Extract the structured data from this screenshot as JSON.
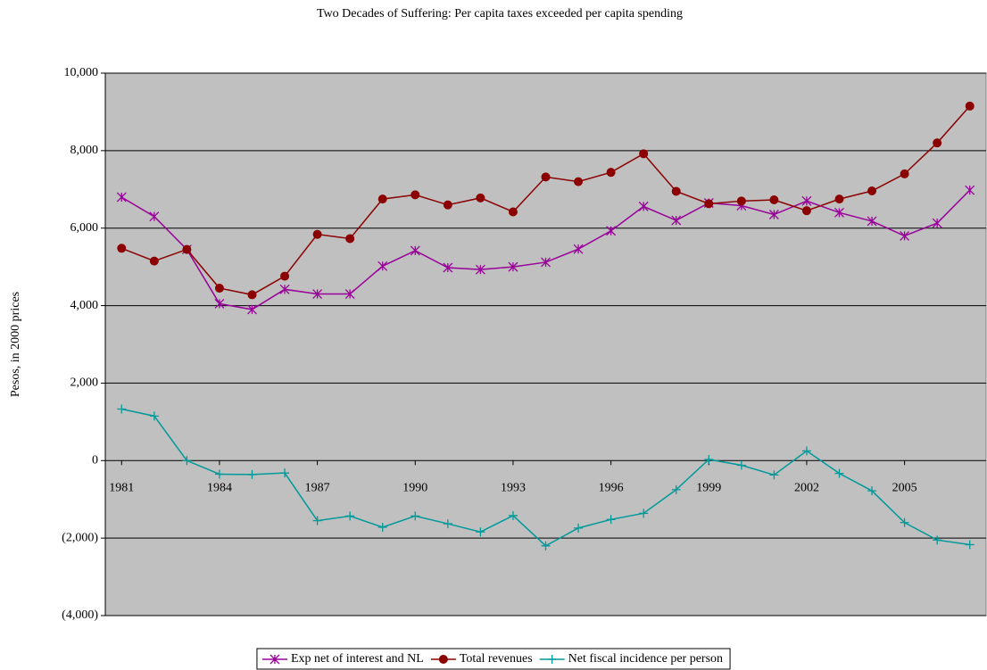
{
  "chart_data": {
    "type": "line",
    "title": "Two Decades of Suffering: Per capita taxes exceeded per capita  spending",
    "y_label": "Pesos, in 2000 prices",
    "x": [
      1981,
      1982,
      1983,
      1984,
      1985,
      1986,
      1987,
      1988,
      1989,
      1990,
      1991,
      1992,
      1993,
      1994,
      1995,
      1996,
      1997,
      1998,
      1999,
      2000,
      2001,
      2002,
      2003,
      2004,
      2005,
      2006,
      2007
    ],
    "xlim": [
      1980.5,
      2007.5
    ],
    "xticks": [
      1981,
      1984,
      1987,
      1990,
      1993,
      1996,
      1999,
      2002,
      2005
    ],
    "ylim": [
      -4000,
      10000
    ],
    "yticks": [
      {
        "value": -4000,
        "label": "(4,000)"
      },
      {
        "value": -2000,
        "label": "(2,000)"
      },
      0,
      {
        "value": 2000,
        "label": "2,000"
      },
      {
        "value": 4000,
        "label": "4,000"
      },
      {
        "value": 6000,
        "label": "6,000"
      },
      {
        "value": 8000,
        "label": "8,000"
      },
      {
        "value": 10000,
        "label": "10,000"
      }
    ],
    "grid": true,
    "legend": "bottom",
    "series": [
      {
        "name": "Exp net of interest and NL",
        "color": "#990099",
        "marker": "star",
        "values": [
          6800,
          6300,
          5450,
          4050,
          3900,
          4420,
          4300,
          4300,
          5020,
          5420,
          4980,
          4930,
          5000,
          5120,
          5460,
          5930,
          6560,
          6200,
          6650,
          6580,
          6350,
          6700,
          6400,
          6180,
          5800,
          6130,
          6980
        ]
      },
      {
        "name": "Total revenues",
        "color": "#8b0000",
        "marker": "circle",
        "values": [
          5480,
          5150,
          5450,
          4450,
          4280,
          4760,
          5840,
          5730,
          6750,
          6860,
          6600,
          6780,
          6420,
          7320,
          7200,
          7440,
          7920,
          6950,
          6630,
          6700,
          6730,
          6450,
          6750,
          6960,
          7400,
          8200,
          9150
        ]
      },
      {
        "name": "Net fiscal incidence per person",
        "color": "#009999",
        "marker": "plus",
        "values": [
          1330,
          1150,
          0,
          -350,
          -360,
          -320,
          -1550,
          -1430,
          -1720,
          -1430,
          -1630,
          -1840,
          -1420,
          -2200,
          -1740,
          -1520,
          -1360,
          -750,
          30,
          -120,
          -370,
          250,
          -330,
          -780,
          -1600,
          -2050,
          -2170
        ]
      }
    ]
  }
}
